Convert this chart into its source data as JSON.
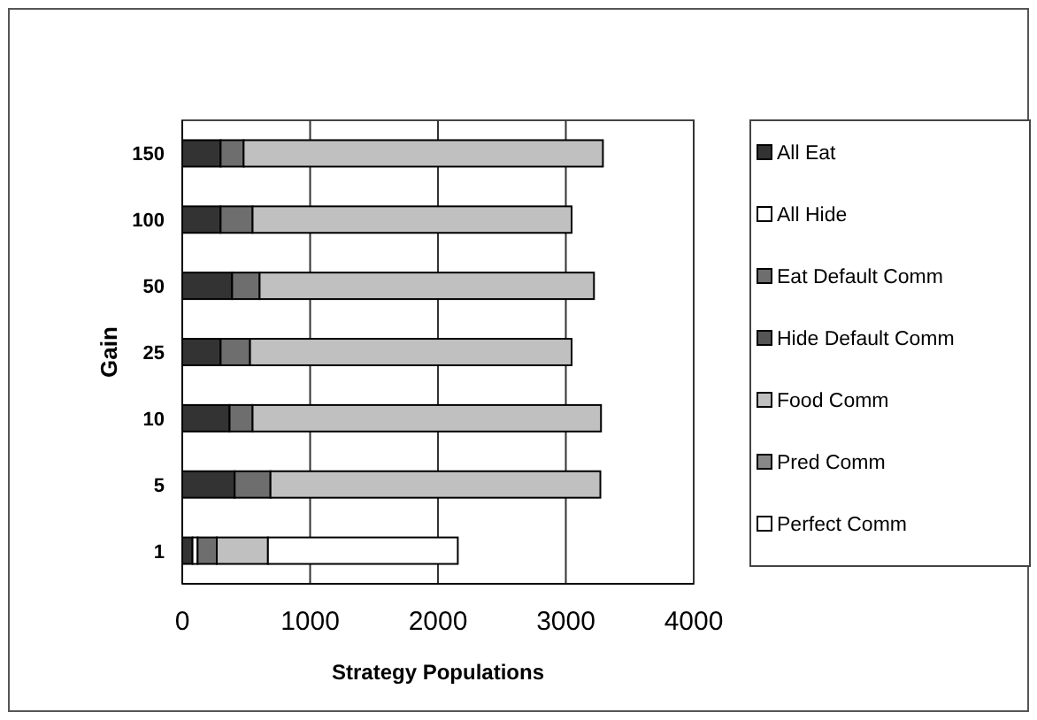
{
  "chart_data": {
    "type": "bar",
    "orientation": "horizontal",
    "stacked": true,
    "xlabel": "Strategy Populations",
    "ylabel": "Gain",
    "categories": [
      "150",
      "100",
      "50",
      "25",
      "10",
      "5",
      "1"
    ],
    "series": [
      {
        "name": "All Eat",
        "color": "#333333",
        "values": [
          300,
          300,
          390,
          300,
          370,
          410,
          80
        ]
      },
      {
        "name": "All Hide",
        "color": "#ffffff",
        "values": [
          0,
          0,
          0,
          0,
          0,
          0,
          40
        ]
      },
      {
        "name": "Eat Default Comm",
        "color": "#6e6e6e",
        "values": [
          180,
          250,
          215,
          230,
          180,
          280,
          150
        ]
      },
      {
        "name": "Hide Default Comm",
        "color": "#555555",
        "values": [
          0,
          0,
          0,
          0,
          0,
          0,
          0
        ]
      },
      {
        "name": "Food Comm",
        "color": "#c0c0c0",
        "values": [
          2810,
          2495,
          2615,
          2515,
          2725,
          2580,
          400
        ]
      },
      {
        "name": "Pred Comm",
        "color": "#888888",
        "values": [
          0,
          0,
          0,
          0,
          0,
          0,
          0
        ]
      },
      {
        "name": "Perfect Comm",
        "color": "#ffffff",
        "values": [
          0,
          0,
          0,
          0,
          0,
          0,
          1485
        ]
      }
    ],
    "xlim": [
      0,
      4000
    ],
    "xticks": [
      0,
      1000,
      2000,
      3000,
      4000
    ],
    "grid": "x",
    "legend": "right"
  }
}
